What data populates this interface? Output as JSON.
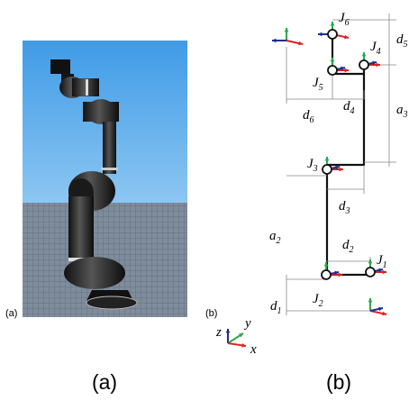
{
  "panel_a": {
    "label": "(a)",
    "caption": "(a)"
  },
  "panel_b": {
    "label": "(b)",
    "caption": "(b)",
    "joints": [
      {
        "symbol": "J",
        "index": "1"
      },
      {
        "symbol": "J",
        "index": "2"
      },
      {
        "symbol": "J",
        "index": "3"
      },
      {
        "symbol": "J",
        "index": "4"
      },
      {
        "symbol": "J",
        "index": "5"
      },
      {
        "symbol": "J",
        "index": "6"
      }
    ],
    "dimensions": [
      {
        "symbol": "d",
        "index": "1"
      },
      {
        "symbol": "d",
        "index": "2"
      },
      {
        "symbol": "d",
        "index": "3"
      },
      {
        "symbol": "d",
        "index": "4"
      },
      {
        "symbol": "d",
        "index": "5"
      },
      {
        "symbol": "d",
        "index": "6"
      },
      {
        "symbol": "a",
        "index": "2"
      },
      {
        "symbol": "a",
        "index": "3"
      }
    ],
    "axes": {
      "z": "z",
      "y": "y",
      "x": "x"
    }
  }
}
